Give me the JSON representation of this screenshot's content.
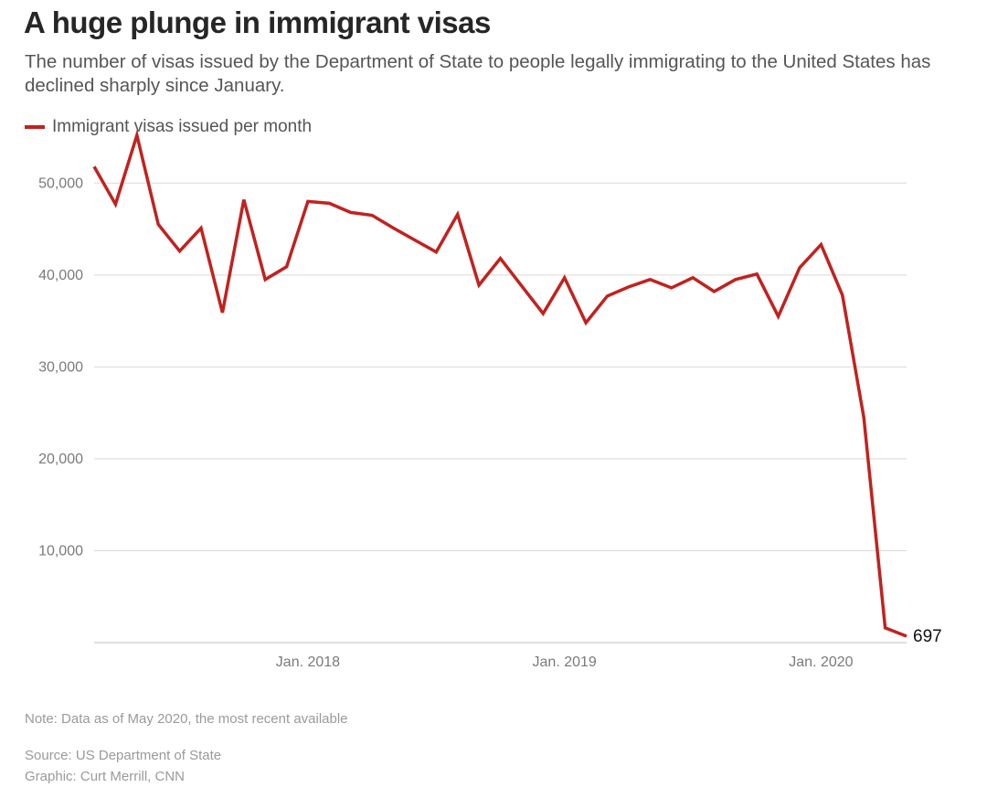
{
  "header": {
    "title": "A huge plunge in immigrant visas",
    "subtitle": "The number of visas issued by the Department of State to people legally immigrating to the United States has declined sharply since January."
  },
  "legend": {
    "label": "Immigrant visas issued per month",
    "color": "#c1221f"
  },
  "footer": {
    "note": "Note: Data as of May 2020, the most recent available",
    "source": "Source: US Department of State",
    "credit": "Graphic: Curt Merrill, CNN"
  },
  "chart_data": {
    "type": "line",
    "title": "A huge plunge in immigrant visas",
    "xlabel": "",
    "ylabel": "",
    "x": [
      "2017-03",
      "2017-04",
      "2017-05",
      "2017-06",
      "2017-07",
      "2017-08",
      "2017-09",
      "2017-10",
      "2017-11",
      "2017-12",
      "2018-01",
      "2018-02",
      "2018-03",
      "2018-04",
      "2018-05",
      "2018-06",
      "2018-07",
      "2018-08",
      "2018-09",
      "2018-10",
      "2018-11",
      "2018-12",
      "2019-01",
      "2019-02",
      "2019-03",
      "2019-04",
      "2019-05",
      "2019-06",
      "2019-07",
      "2019-08",
      "2019-09",
      "2019-10",
      "2019-11",
      "2019-12",
      "2020-01",
      "2020-02",
      "2020-03",
      "2020-04",
      "2020-05"
    ],
    "series": [
      {
        "name": "Immigrant visas issued per month",
        "color": "#c1221f",
        "values": [
          51800,
          47700,
          55200,
          45500,
          42600,
          45100,
          35900,
          48200,
          39500,
          40900,
          48000,
          47800,
          46800,
          46500,
          45100,
          43800,
          42500,
          46600,
          38900,
          41800,
          38800,
          35800,
          39700,
          34800,
          37700,
          38700,
          39500,
          38600,
          39700,
          38200,
          39500,
          40100,
          35500,
          40800,
          43300,
          37800,
          24500,
          1600,
          697
        ]
      }
    ],
    "x_tick_labels": [
      {
        "x": "2018-01",
        "label": "Jan. 2018"
      },
      {
        "x": "2019-01",
        "label": "Jan. 2019"
      },
      {
        "x": "2020-01",
        "label": "Jan. 2020"
      }
    ],
    "y_ticks": [
      10000,
      20000,
      30000,
      40000,
      50000
    ],
    "y_tick_labels": [
      "10,000",
      "20,000",
      "30,000",
      "40,000",
      "50,000"
    ],
    "ylim": [
      0,
      55000
    ],
    "grid": true,
    "legend_position": "top-left",
    "end_label": "697"
  }
}
